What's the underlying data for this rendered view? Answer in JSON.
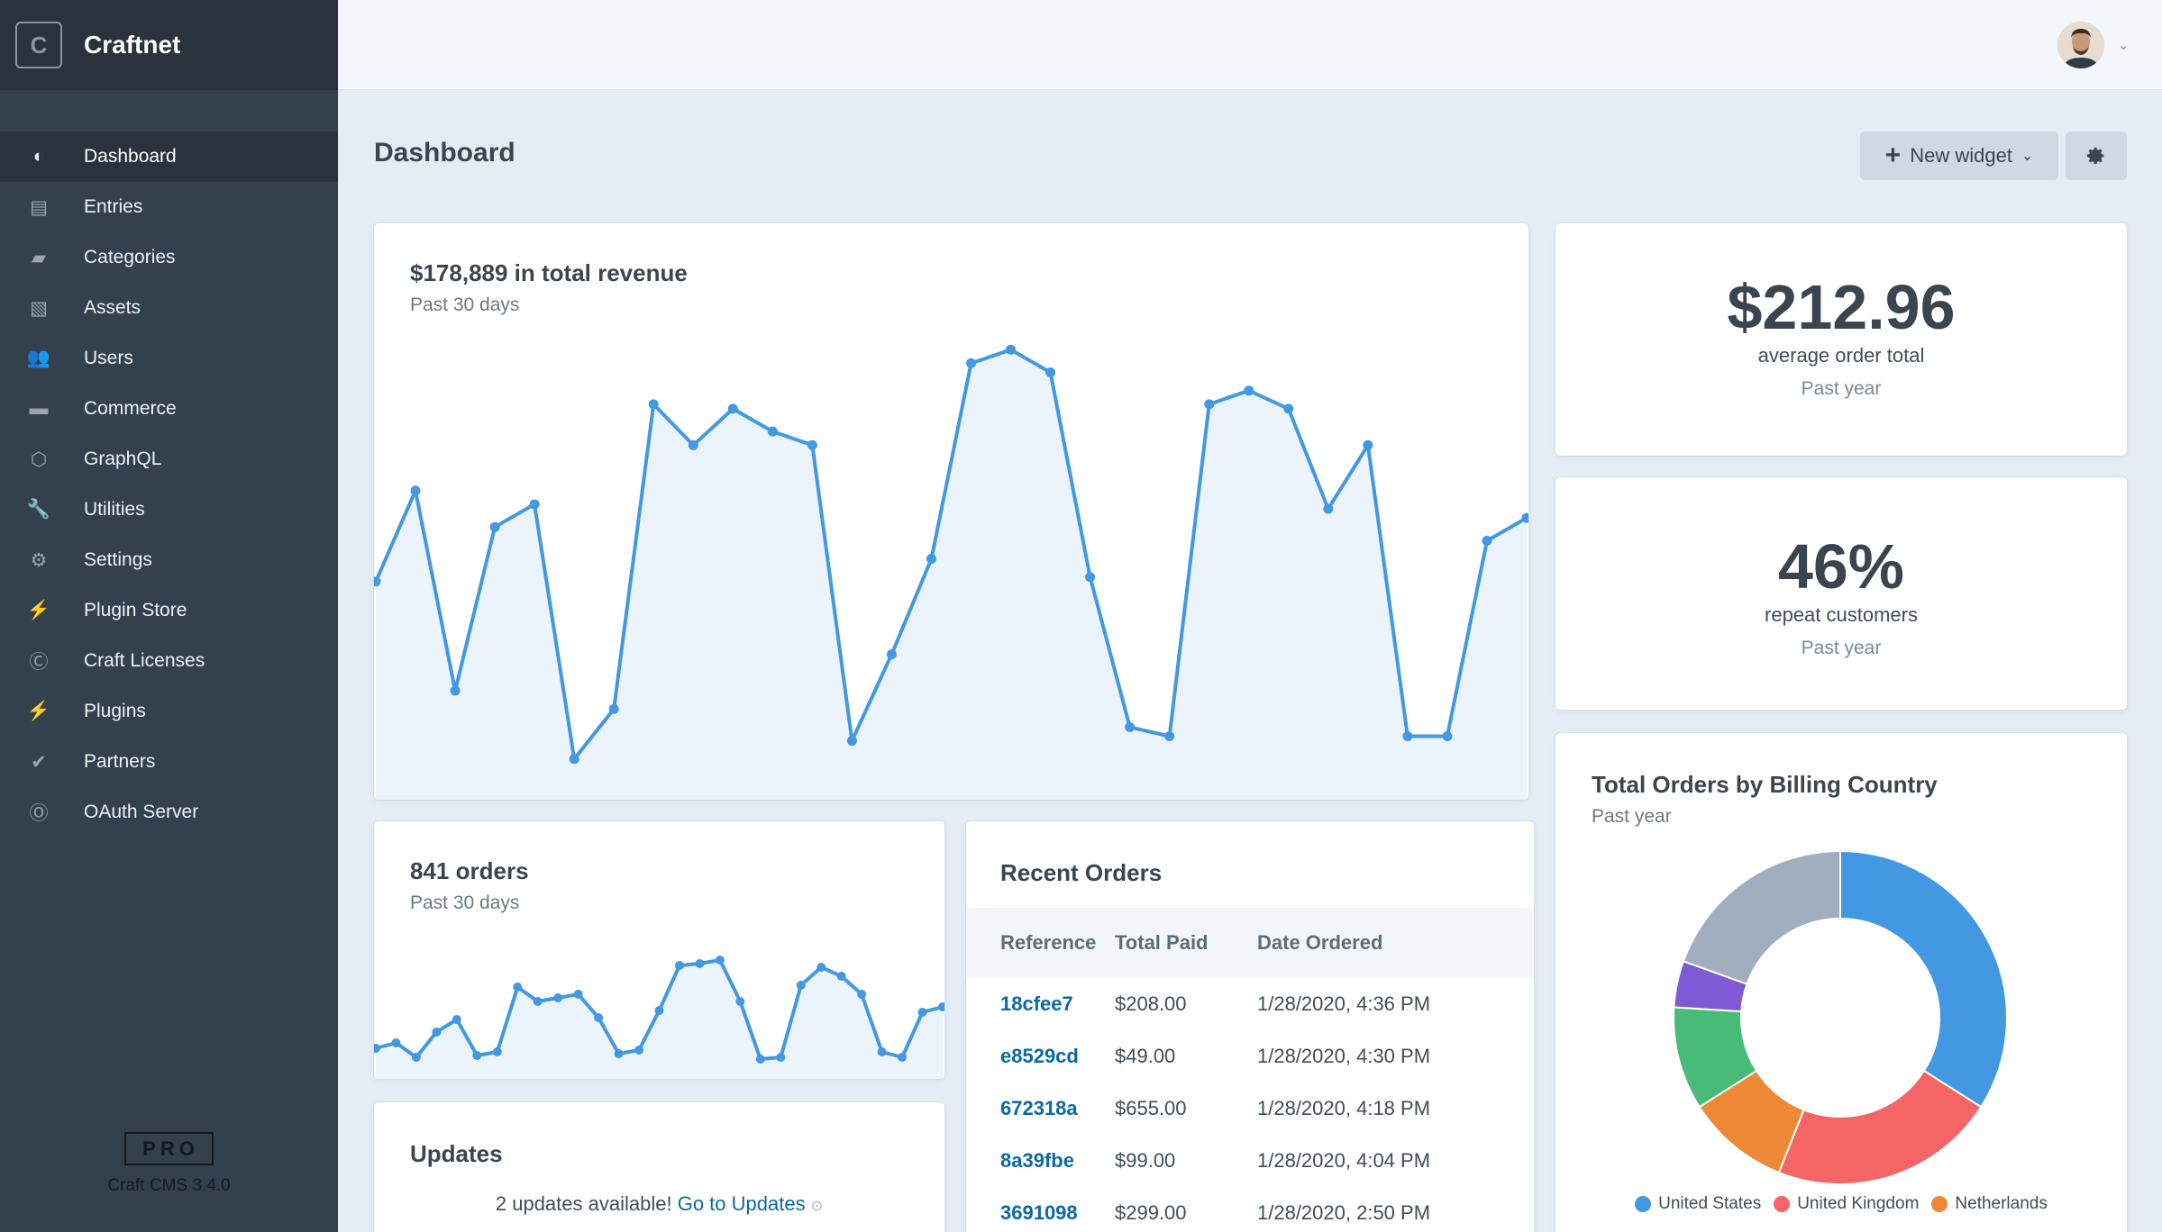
{
  "sidebar": {
    "logo_letter": "C",
    "site_name": "Craftnet",
    "items": [
      {
        "label": "Dashboard",
        "icon": "gauge-icon"
      },
      {
        "label": "Entries",
        "icon": "newspaper-icon"
      },
      {
        "label": "Categories",
        "icon": "folder-icon"
      },
      {
        "label": "Assets",
        "icon": "image-icon"
      },
      {
        "label": "Users",
        "icon": "users-icon"
      },
      {
        "label": "Commerce",
        "icon": "credit-card-icon"
      },
      {
        "label": "GraphQL",
        "icon": "graphql-icon"
      },
      {
        "label": "Utilities",
        "icon": "wrench-icon"
      },
      {
        "label": "Settings",
        "icon": "gear-icon"
      },
      {
        "label": "Plugin Store",
        "icon": "plug-icon"
      },
      {
        "label": "Craft Licenses",
        "icon": "c-badge-icon"
      },
      {
        "label": "Plugins",
        "icon": "plug-icon"
      },
      {
        "label": "Partners",
        "icon": "check-circle-icon"
      },
      {
        "label": "OAuth Server",
        "icon": "o-badge-icon"
      }
    ],
    "active_index": 0,
    "edition": "PRO",
    "version": "Craft CMS 3.4.0"
  },
  "header": {
    "page_title": "Dashboard",
    "new_widget_label": "New widget"
  },
  "revenue": {
    "title": "$178,889 in total revenue",
    "subtitle": "Past 30 days"
  },
  "orders": {
    "title": "841 orders",
    "subtitle": "Past 30 days"
  },
  "updates": {
    "title": "Updates",
    "message": "2 updates available!",
    "link": "Go to Updates"
  },
  "recent_orders": {
    "title": "Recent Orders",
    "columns": [
      "Reference",
      "Total Paid",
      "Date Ordered"
    ],
    "rows": [
      {
        "ref": "18cfee7",
        "total": "$208.00",
        "date": "1/28/2020, 4:36 PM"
      },
      {
        "ref": "e8529cd",
        "total": "$49.00",
        "date": "1/28/2020, 4:30 PM"
      },
      {
        "ref": "672318a",
        "total": "$655.00",
        "date": "1/28/2020, 4:18 PM"
      },
      {
        "ref": "8a39fbe",
        "total": "$99.00",
        "date": "1/28/2020, 4:04 PM"
      },
      {
        "ref": "3691098",
        "total": "$299.00",
        "date": "1/28/2020, 2:50 PM"
      }
    ]
  },
  "aov": {
    "value": "$212.96",
    "label": "average order total",
    "period": "Past year"
  },
  "repeat": {
    "value": "46%",
    "label": "repeat customers",
    "period": "Past year"
  },
  "country": {
    "title": "Total Orders by Billing Country",
    "subtitle": "Past year",
    "legend": [
      {
        "name": "United States",
        "color": "#4299e1"
      },
      {
        "name": "United Kingdom",
        "color": "#f56565"
      },
      {
        "name": "Netherlands",
        "color": "#ed8936"
      }
    ]
  },
  "colors": {
    "accent": "#4299e1",
    "link": "#0b69a3",
    "sidebar": "#33404d"
  },
  "chart_data": [
    {
      "type": "area",
      "series": [
        {
          "values": [
            44,
            64,
            20,
            56,
            61,
            5,
            16,
            83,
            74,
            82,
            77,
            74,
            9,
            28,
            49,
            92,
            95,
            90,
            45,
            12,
            10,
            83,
            86,
            82,
            60,
            74,
            10,
            10,
            53,
            58
          ]
        }
      ],
      "ylim": [
        0,
        100
      ]
    },
    {
      "type": "area",
      "series": [
        {
          "values": [
            10,
            13,
            5,
            19,
            26,
            6,
            8,
            44,
            36,
            38,
            40,
            27,
            7,
            9,
            31,
            56,
            57,
            59,
            36,
            4,
            5,
            45,
            55,
            50,
            40,
            8,
            5,
            30,
            33
          ]
        }
      ],
      "ylim": [
        0,
        70
      ]
    },
    {
      "type": "pie",
      "donut": true,
      "slices": [
        {
          "value": 34,
          "color": "#4299e1"
        },
        {
          "value": 22,
          "color": "#f56565"
        },
        {
          "value": 10,
          "color": "#ed8936"
        },
        {
          "value": 10,
          "color": "#48bb78"
        },
        {
          "value": 4.5,
          "color": "#805ad5"
        },
        {
          "value": 19.5,
          "color": "#a0aec0"
        }
      ]
    }
  ]
}
